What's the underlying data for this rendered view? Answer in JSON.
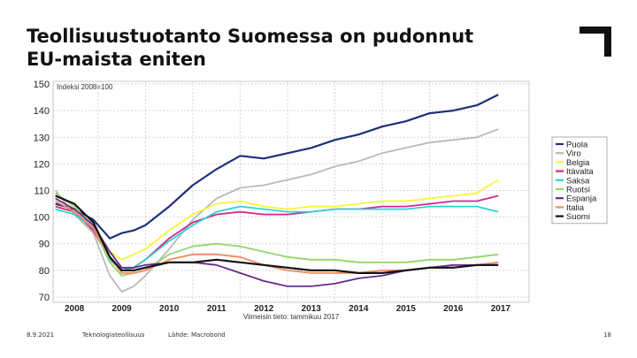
{
  "slide": {
    "title_line1": "Teollisuustuotanto Suomessa on pudonnut",
    "title_line2": "EU-maista eniten",
    "logo_icon": "corner-bracket-logo-icon",
    "footer": {
      "date": "8.9.2021",
      "org": "Teknologiateollisuus",
      "source": "Lähde: Macrobond",
      "page": "18"
    }
  },
  "chart_data": {
    "type": "line",
    "title": "",
    "subtitle": "Indeksi 2008=100",
    "xlabel": "",
    "ylabel": "",
    "annotation": "Viimeisin tieto: tammikuu 2017",
    "xlim": [
      2007.55,
      2017.6
    ],
    "ylim": [
      68,
      151
    ],
    "x_ticks": [
      2008,
      2009,
      2010,
      2011,
      2012,
      2013,
      2014,
      2015,
      2016,
      2017
    ],
    "y_ticks": [
      70,
      80,
      90,
      100,
      110,
      120,
      130,
      140,
      150
    ],
    "grid": true,
    "legend_position": "right",
    "x": [
      2007.6,
      2008.0,
      2008.4,
      2008.75,
      2009.0,
      2009.25,
      2009.5,
      2010.0,
      2010.5,
      2011.0,
      2011.5,
      2012.0,
      2012.5,
      2013.0,
      2013.5,
      2014.0,
      2014.5,
      2015.0,
      2015.5,
      2016.0,
      2016.5,
      2016.95
    ],
    "series": [
      {
        "name": "Puola",
        "color": "#1f2f7a",
        "values": [
          105,
          103,
          99,
          92,
          94,
          95,
          97,
          104,
          112,
          118,
          123,
          122,
          124,
          126,
          129,
          131,
          134,
          136,
          139,
          140,
          142,
          146
        ]
      },
      {
        "name": "Viro",
        "color": "#b9b9b9",
        "values": [
          110,
          101,
          94,
          78,
          72,
          74,
          78,
          88,
          99,
          107,
          111,
          112,
          114,
          116,
          119,
          121,
          124,
          126,
          128,
          129,
          130,
          133
        ]
      },
      {
        "name": "Belgia",
        "color": "#f5f53c",
        "values": [
          104,
          102,
          96,
          87,
          84,
          86,
          88,
          95,
          101,
          105,
          106,
          104,
          103,
          104,
          104,
          105,
          106,
          106,
          107,
          108,
          109,
          114
        ]
      },
      {
        "name": "Itävalta",
        "color": "#d0288a",
        "values": [
          104,
          102,
          95,
          84,
          80,
          81,
          84,
          92,
          98,
          101,
          102,
          101,
          101,
          102,
          103,
          103,
          104,
          104,
          105,
          106,
          106,
          108
        ]
      },
      {
        "name": "Saksa",
        "color": "#2ed3d3",
        "values": [
          103,
          101,
          96,
          84,
          80,
          81,
          84,
          91,
          97,
          102,
          104,
          103,
          102,
          102,
          103,
          103,
          103,
          103,
          104,
          104,
          104,
          102
        ]
      },
      {
        "name": "Ruotsi",
        "color": "#94d66b",
        "values": [
          109,
          104,
          96,
          83,
          78,
          79,
          80,
          86,
          89,
          90,
          89,
          87,
          85,
          84,
          84,
          83,
          83,
          83,
          84,
          84,
          85,
          86
        ]
      },
      {
        "name": "Espanja",
        "color": "#6a2a8c",
        "values": [
          107,
          103,
          97,
          87,
          81,
          81,
          82,
          83,
          83,
          82,
          79,
          76,
          74,
          74,
          75,
          77,
          78,
          80,
          81,
          82,
          82,
          82
        ]
      },
      {
        "name": "Italia",
        "color": "#f08a5a",
        "values": [
          106,
          102,
          96,
          85,
          79,
          79,
          80,
          84,
          86,
          86,
          85,
          82,
          80,
          79,
          79,
          79,
          80,
          80,
          81,
          81,
          82,
          83
        ]
      },
      {
        "name": "Suomi",
        "color": "#111111",
        "values": [
          108,
          105,
          98,
          85,
          80,
          80,
          81,
          83,
          83,
          84,
          83,
          82,
          81,
          80,
          80,
          79,
          79,
          80,
          81,
          81,
          82,
          82
        ]
      }
    ]
  }
}
